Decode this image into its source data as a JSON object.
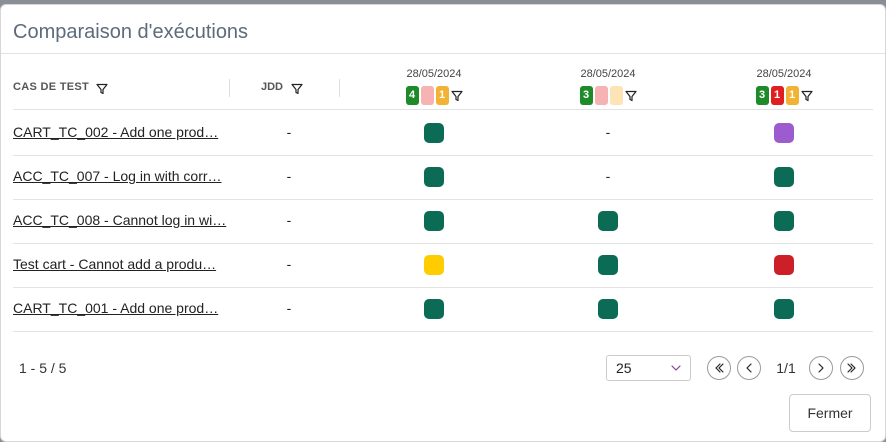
{
  "header": {
    "title": "Comparaison d'exécutions"
  },
  "table": {
    "columns": [
      "CAS DE TEST",
      "JDD"
    ],
    "executions": [
      {
        "date": "28/05/2024",
        "badges": [
          {
            "color": "#1f8a2a",
            "count": 4
          },
          {
            "color": "#f7b3b3"
          },
          {
            "color": "#f2b233",
            "count": 1
          }
        ]
      },
      {
        "date": "28/05/2024",
        "badges": [
          {
            "color": "#1f8a2a",
            "count": 3
          },
          {
            "color": "#f7b3b3"
          },
          {
            "color": "#fde3b5"
          }
        ]
      },
      {
        "date": "28/05/2024",
        "badges": [
          {
            "color": "#1f8a2a",
            "count": 3
          },
          {
            "color": "#e02020",
            "count": 1
          },
          {
            "color": "#f2b233",
            "count": 1
          }
        ]
      }
    ],
    "rows": [
      {
        "test": "CART_TC_002 - Add one prod…",
        "jdd": "-",
        "results": [
          "#0b6b55",
          "-",
          "#9c5ccf"
        ]
      },
      {
        "test": "ACC_TC_007 - Log in with corr…",
        "jdd": "-",
        "results": [
          "#0b6b55",
          "-",
          "#0b6b55"
        ]
      },
      {
        "test": "ACC_TC_008 - Cannot log in wi…",
        "jdd": "-",
        "results": [
          "#0b6b55",
          "#0b6b55",
          "#0b6b55"
        ]
      },
      {
        "test": "Test cart - Cannot add a produ…",
        "jdd": "-",
        "results": [
          "#ffcc00",
          "#0b6b55",
          "#cc1f2a"
        ]
      },
      {
        "test": "CART_TC_001 - Add one prod…",
        "jdd": "-",
        "results": [
          "#0b6b55",
          "#0b6b55",
          "#0b6b55"
        ]
      }
    ]
  },
  "pagination": {
    "range": "1 - 5 / 5",
    "page_size": "25",
    "pages": "1/1"
  },
  "footer": {
    "close": "Fermer"
  }
}
